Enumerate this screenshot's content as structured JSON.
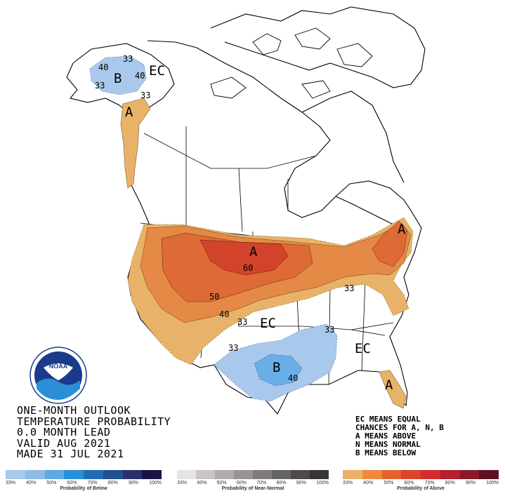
{
  "title": {
    "line1": "ONE-MONTH OUTLOOK",
    "line2": "TEMPERATURE PROBABILITY",
    "line3": "0.0 MONTH LEAD",
    "line4": "VALID AUG 2021",
    "line5": "MADE 31 JUL 2021"
  },
  "notes": {
    "line1": "EC MEANS EQUAL",
    "line2": "CHANCES FOR A, N, B",
    "line3": "A MEANS ABOVE",
    "line4": "N MEANS NORMAL",
    "line5": "B MEANS BELOW"
  },
  "map_labels": {
    "ec_alaska": "EC",
    "ec_central": "EC",
    "ec_southeast": "EC",
    "b_alaska": "B",
    "b_texas": "B",
    "a_alaska": "A",
    "a_plains": "A",
    "a_northeast": "A",
    "a_florida": "A",
    "n33_ak_top": "33",
    "n40_ak_left": "40",
    "n40_ak_right": "40",
    "n33_ak_bottom": "33",
    "n33_ak_panhandle": "33",
    "n60": "60",
    "n50": "50",
    "n40_west": "40",
    "n33_central": "33",
    "n33_east": "33",
    "n33_south": "33",
    "n33_tx": "33",
    "n40_tx": "40"
  },
  "scales": {
    "below": {
      "title": "Probability of Below",
      "ticks": [
        "33%",
        "40%",
        "50%",
        "60%",
        "70%",
        "80%",
        "90%",
        "100%"
      ],
      "colors": [
        "#a9c9ec",
        "#8fbbe8",
        "#5ea9e2",
        "#2a8fd6",
        "#1f6db5",
        "#234f8f",
        "#2a2f6e",
        "#1a1446"
      ]
    },
    "near_normal": {
      "title": "Probability of Near-Normal",
      "ticks": [
        "33%",
        "40%",
        "50%",
        "60%",
        "70%",
        "80%",
        "90%",
        "100%"
      ],
      "colors": [
        "#e7e2e4",
        "#c9c4c6",
        "#b0abad",
        "#979394",
        "#7f7b7c",
        "#676364",
        "#4f4b4c",
        "#383435"
      ]
    },
    "above": {
      "title": "Probability of Above",
      "ticks": [
        "33%",
        "40%",
        "50%",
        "60%",
        "70%",
        "80%",
        "90%",
        "100%"
      ],
      "colors": [
        "#e8b368",
        "#ef8a3c",
        "#e2622d",
        "#d8452a",
        "#d32b2e",
        "#b3202e",
        "#8a1a2a",
        "#5e1020"
      ]
    }
  },
  "colors": {
    "above_33": "#e8b368",
    "above_40": "#e48a46",
    "above_50": "#de6a35",
    "above_60": "#d2432c",
    "below_33": "#a9c9ec",
    "below_40": "#6aaee6"
  },
  "logo_text": "NOAA"
}
